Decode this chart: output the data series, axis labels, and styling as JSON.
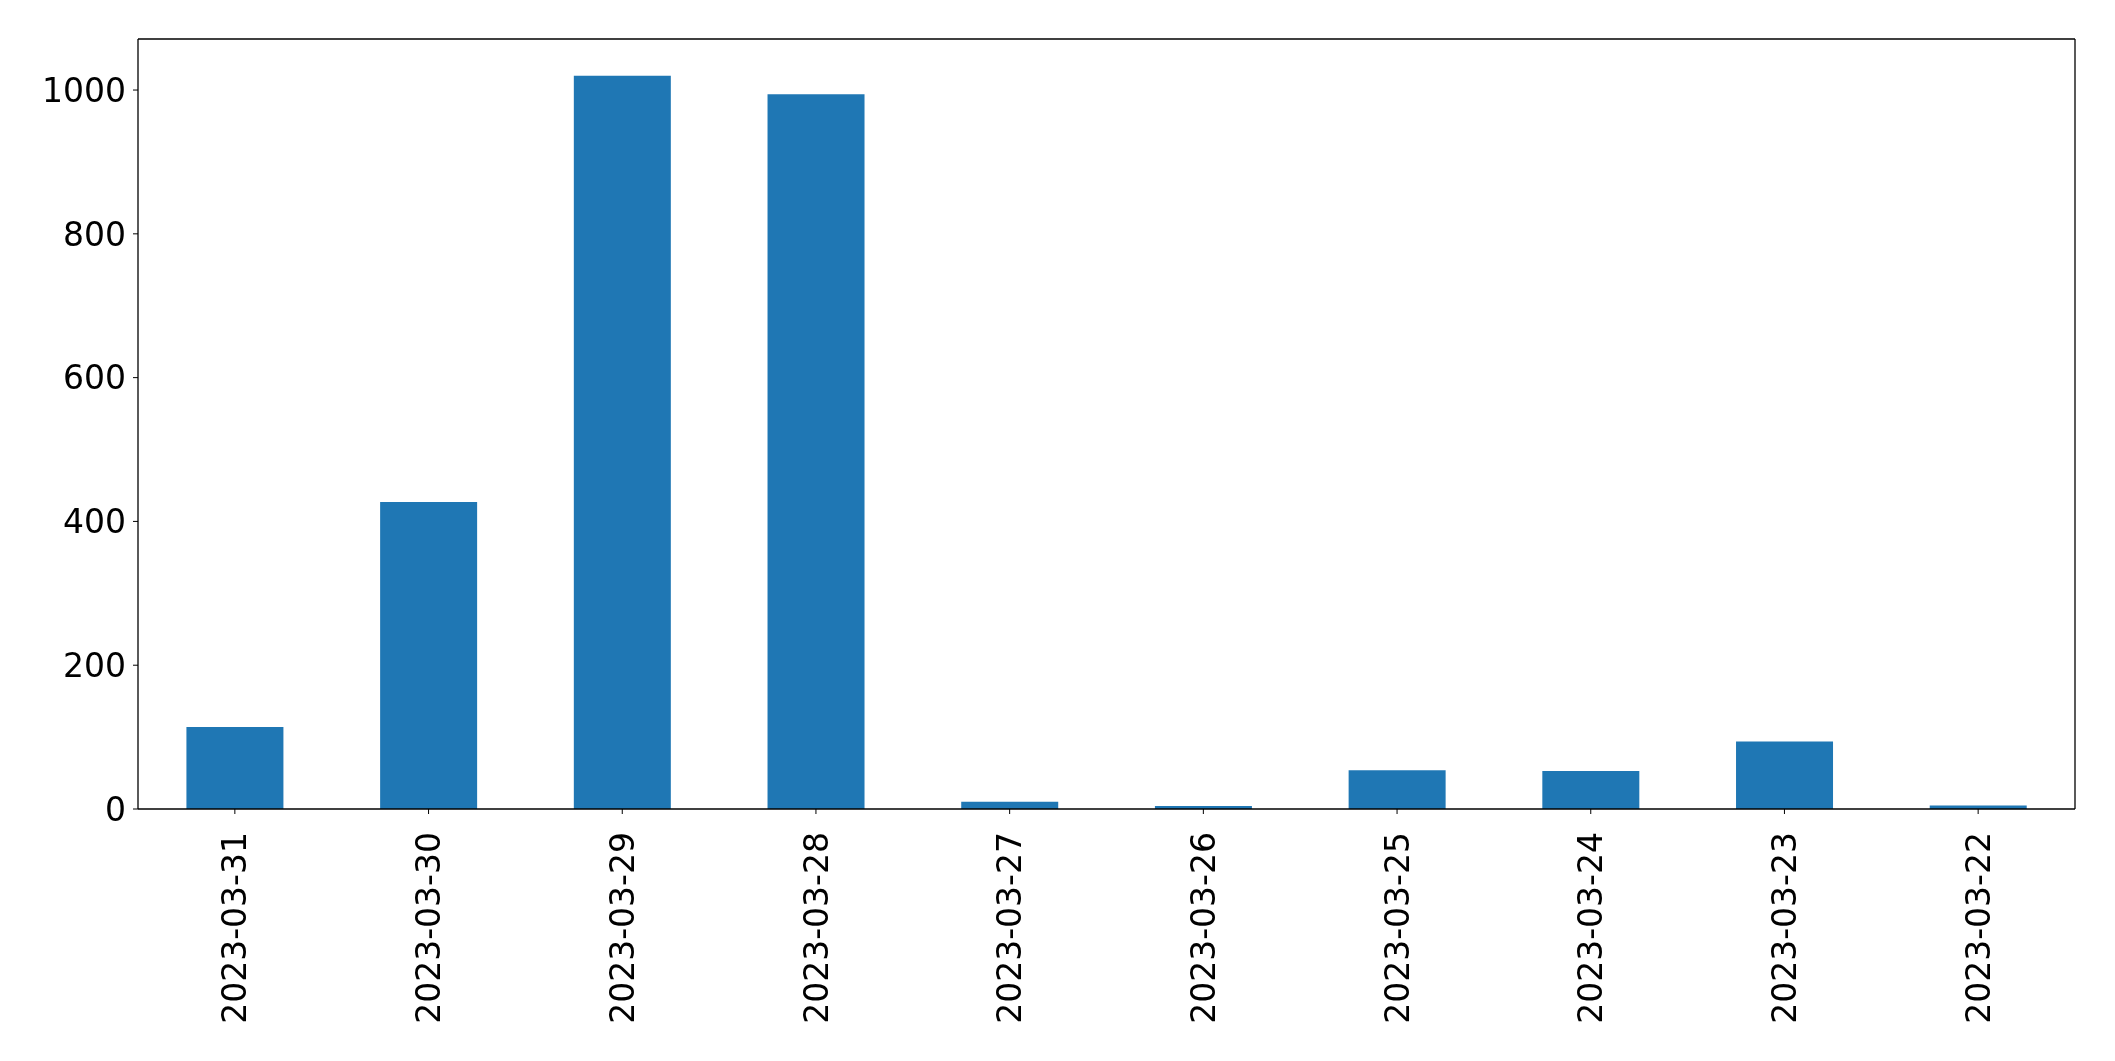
{
  "chart_data": {
    "type": "bar",
    "categories": [
      "2023-03-31",
      "2023-03-30",
      "2023-03-29",
      "2023-03-28",
      "2023-03-27",
      "2023-03-26",
      "2023-03-25",
      "2023-03-24",
      "2023-03-23",
      "2023-03-22"
    ],
    "values": [
      114,
      427,
      1020,
      994,
      10,
      4,
      54,
      53,
      94,
      5
    ],
    "color": "#1f77b4",
    "ylim": [
      0,
      1071
    ],
    "yticks": [
      0,
      200,
      400,
      600,
      800,
      1000
    ]
  }
}
